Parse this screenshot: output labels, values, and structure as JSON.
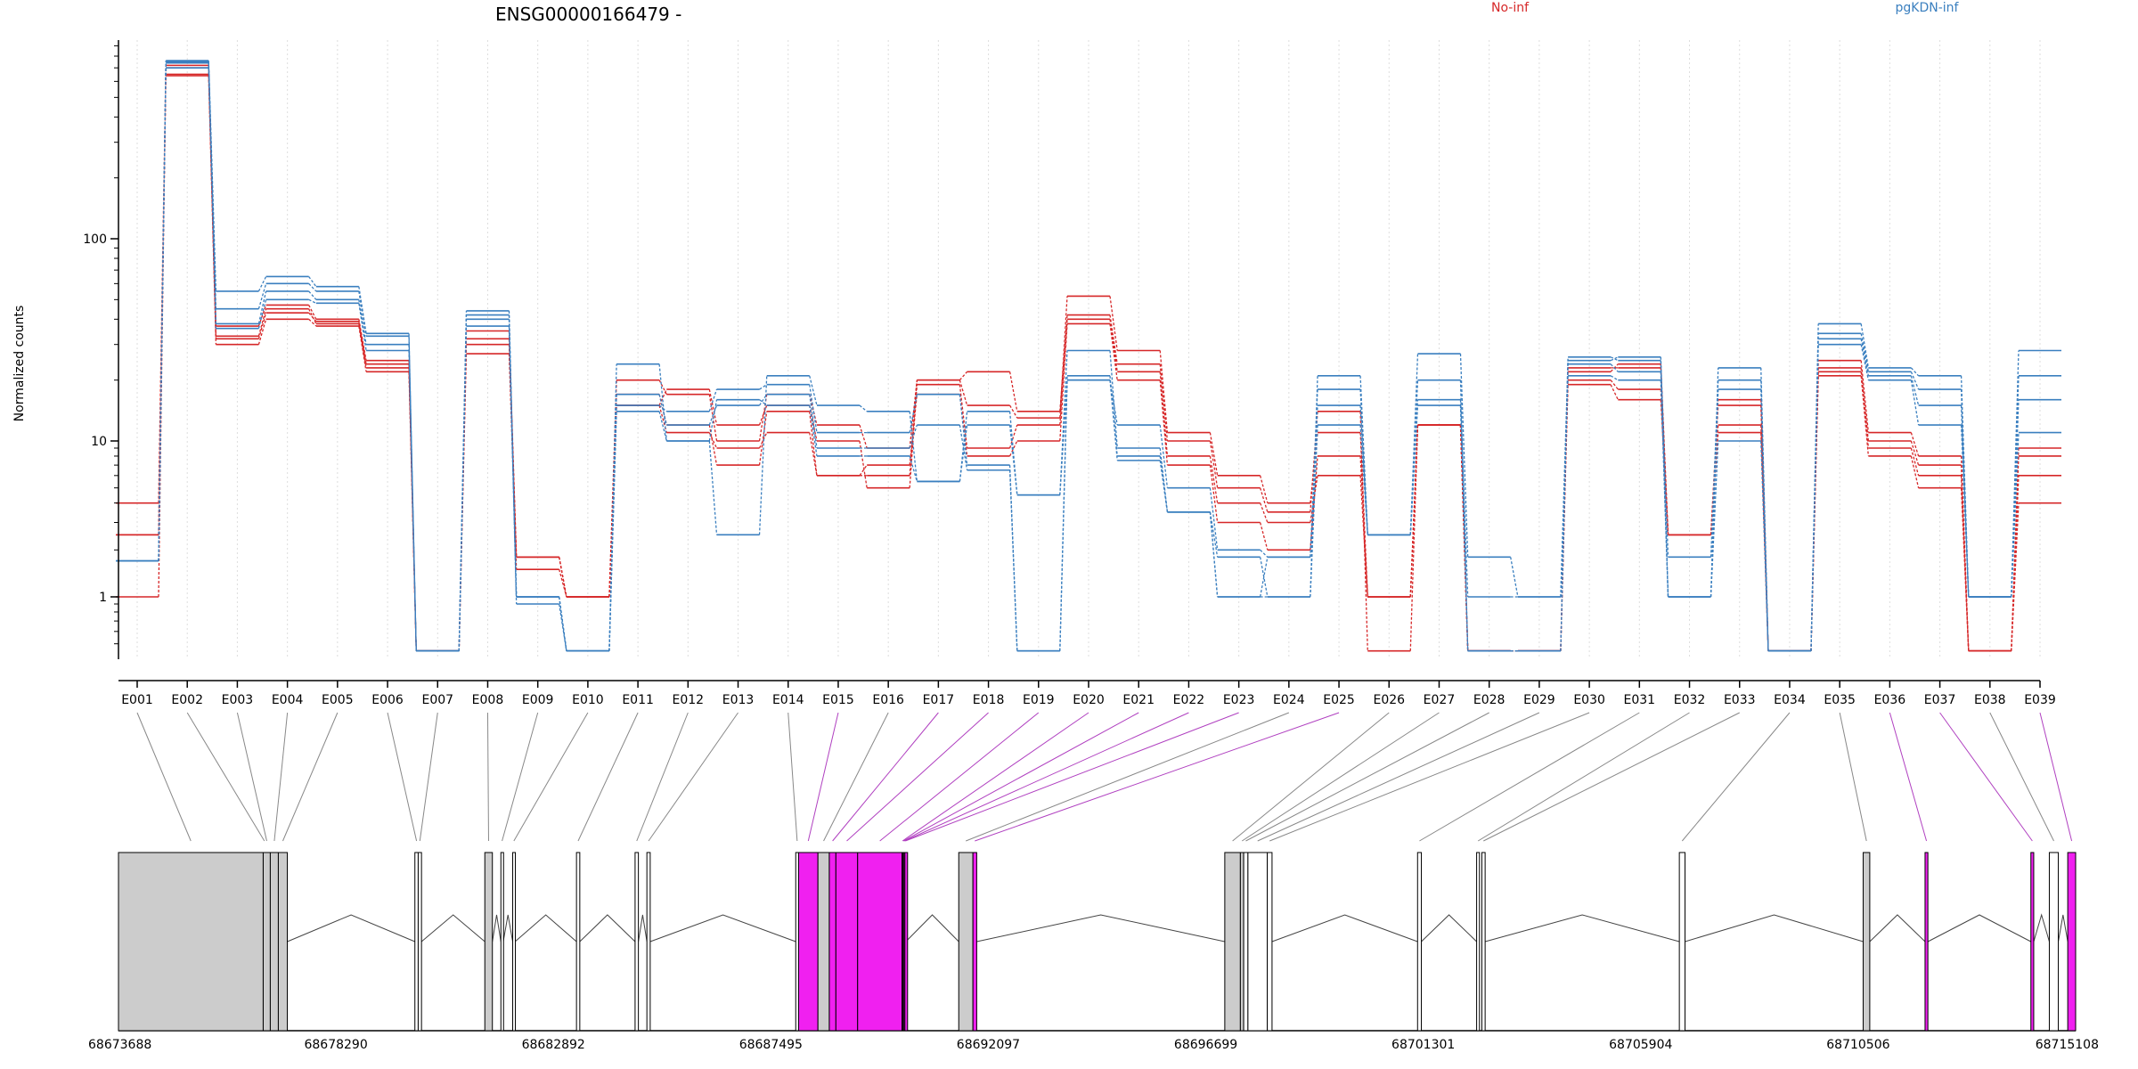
{
  "chart_data": {
    "type": "line",
    "title": "ENSG00000166479 -",
    "ylabel": "Normalized counts",
    "yscale": "log",
    "ylim": [
      0.5,
      900
    ],
    "yticks": [
      1,
      10,
      100
    ],
    "ytick_labels": [
      "1",
      "10",
      "100"
    ],
    "legend": [
      {
        "name": "No-inf",
        "color": "#d62728"
      },
      {
        "name": "pgKDN-inf",
        "color": "#3a7fbf"
      }
    ],
    "legend_placement": "top",
    "grid": "vertical-dotted",
    "categories": [
      "E001",
      "E002",
      "E003",
      "E004",
      "E005",
      "E006",
      "E007",
      "E008",
      "E009",
      "E010",
      "E011",
      "E012",
      "E013",
      "E014",
      "E015",
      "E016",
      "E017",
      "E018",
      "E019",
      "E020",
      "E021",
      "E022",
      "E023",
      "E024",
      "E025",
      "E026",
      "E027",
      "E028",
      "E029",
      "E030",
      "E031",
      "E032",
      "E033",
      "E034",
      "E035",
      "E036",
      "E037",
      "E038",
      "E039"
    ],
    "series": [
      {
        "group": "No-inf",
        "values": [
          2.5,
          640,
          30,
          40,
          37,
          22,
          0.45,
          30,
          1.8,
          1,
          20,
          17,
          10,
          17,
          12,
          9,
          20,
          15,
          13,
          52,
          28,
          11,
          6,
          4,
          11,
          1,
          12,
          0.45,
          0.45,
          22,
          24,
          2.5,
          16,
          0.45,
          25,
          11,
          8,
          0.45,
          9
        ]
      },
      {
        "group": "No-inf",
        "values": [
          1,
          700,
          33,
          45,
          38,
          23,
          0.45,
          32,
          1.8,
          1,
          17,
          12,
          7,
          14,
          6,
          6,
          20,
          22,
          14,
          42,
          24,
          10,
          5,
          3.5,
          14,
          0.45,
          12,
          0.45,
          0.45,
          20,
          18,
          2.5,
          12,
          0.45,
          22,
          10,
          7,
          0.45,
          8
        ]
      },
      {
        "group": "No-inf",
        "values": [
          4,
          720,
          37,
          47,
          40,
          25,
          0.45,
          35,
          1.8,
          1,
          15,
          18,
          12,
          15,
          10,
          5,
          19,
          9,
          12,
          40,
          22,
          8,
          4,
          3,
          6,
          1,
          12,
          0.45,
          0.45,
          19,
          16,
          2.5,
          15,
          0.45,
          21,
          8,
          5,
          0.45,
          6
        ]
      },
      {
        "group": "No-inf",
        "values": [
          2.5,
          650,
          32,
          43,
          39,
          24,
          0.45,
          27,
          1.5,
          1,
          15,
          11,
          9,
          11,
          6,
          7,
          17,
          8,
          10,
          38,
          20,
          7,
          3,
          2,
          8,
          1,
          12,
          0.45,
          0.45,
          23,
          23,
          2.5,
          11,
          0.45,
          23,
          9,
          6,
          0.45,
          4
        ]
      },
      {
        "group": "pgKDN-inf",
        "values": [
          1.7,
          760,
          55,
          65,
          58,
          34,
          0.45,
          44,
          1,
          0.45,
          24,
          10,
          2.5,
          21,
          15,
          14,
          5.5,
          14,
          4.5,
          28,
          9,
          3.5,
          1.8,
          1,
          21,
          2.5,
          27,
          1.8,
          1,
          25,
          26,
          1,
          23,
          0.45,
          38,
          23,
          21,
          1,
          28
        ]
      },
      {
        "group": "pgKDN-inf",
        "values": [
          1.7,
          750,
          45,
          60,
          55,
          33,
          0.45,
          42,
          1,
          0.45,
          15,
          14,
          18,
          19,
          11,
          11,
          17,
          7,
          0.45,
          20,
          12,
          5,
          2,
          1.8,
          18,
          2.5,
          20,
          0.45,
          0.45,
          26,
          25,
          1.8,
          20,
          0.45,
          34,
          22,
          18,
          1,
          21
        ]
      },
      {
        "group": "pgKDN-inf",
        "values": [
          1.7,
          740,
          38,
          55,
          50,
          30,
          0.45,
          40,
          1,
          0.45,
          17,
          12,
          15,
          17,
          9,
          9,
          12,
          6.5,
          0.45,
          21,
          8,
          3.5,
          1,
          1.8,
          15,
          2.5,
          15,
          0.45,
          0.45,
          24,
          22,
          1,
          18,
          0.45,
          32,
          21,
          15,
          1,
          16
        ]
      },
      {
        "group": "pgKDN-inf",
        "values": [
          1.7,
          700,
          36,
          50,
          48,
          28,
          0.45,
          37,
          0.9,
          0.45,
          14,
          10,
          16,
          15,
          8,
          8,
          5.5,
          12,
          4.5,
          20,
          7.5,
          3.5,
          1,
          1,
          12,
          2.5,
          16,
          1,
          1,
          21,
          20,
          1,
          10,
          0.45,
          30,
          20,
          12,
          1,
          11
        ]
      }
    ],
    "gene_model": {
      "coordinate_labels": [
        "68673688",
        "68678290",
        "68682892",
        "68687495",
        "68692097",
        "68696699",
        "68701301",
        "68705904",
        "68710506",
        "68715108"
      ],
      "coord_start": 68673688,
      "coord_end": 68715108,
      "exon_colors": {
        "plain": "#ffffff",
        "constitutive": "#cccccc",
        "significant": "#f020f0"
      },
      "exons": [
        {
          "bin": "E001",
          "start": 68673688,
          "end": 68676751,
          "type": "constitutive"
        },
        {
          "bin": "E002",
          "start": 68676751,
          "end": 68676801,
          "type": "constitutive"
        },
        {
          "bin": "E003",
          "start": 68676751,
          "end": 68676901,
          "type": "constitutive"
        },
        {
          "bin": "E004",
          "start": 68676901,
          "end": 68677071,
          "type": "constitutive"
        },
        {
          "bin": "E005",
          "start": 68677071,
          "end": 68677261,
          "type": "constitutive"
        },
        {
          "bin": "E006",
          "start": 68679961,
          "end": 68680031,
          "type": "plain"
        },
        {
          "bin": "E007",
          "start": 68680031,
          "end": 68680101,
          "type": "plain"
        },
        {
          "bin": "E008",
          "start": 68681441,
          "end": 68681601,
          "type": "constitutive"
        },
        {
          "bin": "E009",
          "start": 68681781,
          "end": 68681831,
          "type": "plain"
        },
        {
          "bin": "E010",
          "start": 68682031,
          "end": 68682081,
          "type": "plain"
        },
        {
          "bin": "E011",
          "start": 68683381,
          "end": 68683451,
          "type": "plain"
        },
        {
          "bin": "E012",
          "start": 68684621,
          "end": 68684691,
          "type": "plain"
        },
        {
          "bin": "E013",
          "start": 68684871,
          "end": 68684941,
          "type": "plain"
        },
        {
          "bin": "E014",
          "start": 68688021,
          "end": 68688081,
          "type": "plain"
        },
        {
          "bin": "E015",
          "start": 68688081,
          "end": 68688491,
          "type": "significant"
        },
        {
          "bin": "E016",
          "start": 68688491,
          "end": 68688731,
          "type": "constitutive"
        },
        {
          "bin": "E017",
          "start": 68688731,
          "end": 68688871,
          "type": "significant"
        },
        {
          "bin": "E018",
          "start": 68688871,
          "end": 68689331,
          "type": "significant"
        },
        {
          "bin": "E019",
          "start": 68689331,
          "end": 68690271,
          "type": "significant"
        },
        {
          "bin": "E020",
          "start": 68690271,
          "end": 68690291,
          "type": "significant"
        },
        {
          "bin": "E021",
          "start": 68690291,
          "end": 68690311,
          "type": "significant"
        },
        {
          "bin": "E022",
          "start": 68690311,
          "end": 68690331,
          "type": "significant"
        },
        {
          "bin": "E023",
          "start": 68690331,
          "end": 68690351,
          "type": "significant"
        },
        {
          "bin": "E024",
          "start": 68691471,
          "end": 68691771,
          "type": "constitutive"
        },
        {
          "bin": "E025",
          "start": 68691771,
          "end": 68691851,
          "type": "significant"
        },
        {
          "bin": "E026",
          "start": 68697101,
          "end": 68697431,
          "type": "constitutive"
        },
        {
          "bin": "E027",
          "start": 68697431,
          "end": 68697501,
          "type": "constitutive"
        },
        {
          "bin": "E028",
          "start": 68697501,
          "end": 68697591,
          "type": "plain"
        },
        {
          "bin": "E029",
          "start": 68697591,
          "end": 68698001,
          "type": "plain"
        },
        {
          "bin": "E030",
          "start": 68698001,
          "end": 68698101,
          "type": "plain"
        },
        {
          "bin": "E031",
          "start": 68701181,
          "end": 68701261,
          "type": "plain"
        },
        {
          "bin": "E032",
          "start": 68702431,
          "end": 68702491,
          "type": "plain"
        },
        {
          "bin": "E033",
          "start": 68702541,
          "end": 68702611,
          "type": "plain"
        },
        {
          "bin": "E034",
          "start": 68706721,
          "end": 68706841,
          "type": "plain"
        },
        {
          "bin": "E035",
          "start": 68710611,
          "end": 68710751,
          "type": "constitutive"
        },
        {
          "bin": "E036",
          "start": 68711921,
          "end": 68711981,
          "type": "significant"
        },
        {
          "bin": "E037",
          "start": 68714161,
          "end": 68714221,
          "type": "significant"
        },
        {
          "bin": "E038",
          "start": 68714551,
          "end": 68714741,
          "type": "plain"
        },
        {
          "bin": "E039",
          "start": 68714941,
          "end": 68715108,
          "type": "significant"
        }
      ]
    }
  }
}
